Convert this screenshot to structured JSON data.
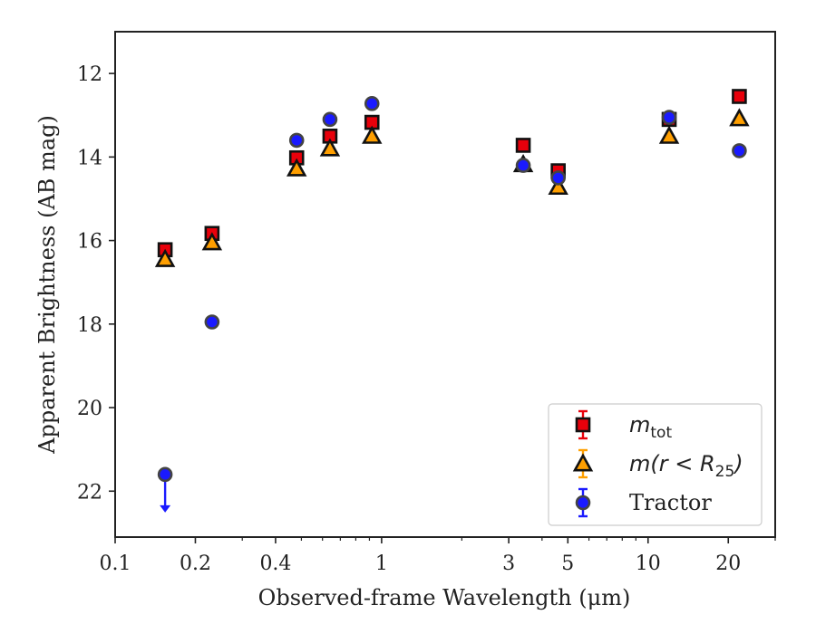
{
  "chart_data": {
    "type": "scatter",
    "xscale": "log",
    "yinverted": true,
    "xlim": [
      0.1,
      30
    ],
    "ylim": [
      11.0,
      23.1
    ],
    "xlabel": "Observed-frame Wavelength (μm)",
    "ylabel": "Apparent Brightness (AB mag)",
    "x_major_ticks": [
      0.1,
      0.2,
      0.4,
      1,
      3,
      5,
      10,
      20
    ],
    "x_tick_labels": [
      "0.1",
      "0.2",
      "0.4",
      "1",
      "3",
      "5",
      "10",
      "20"
    ],
    "y_ticks": [
      12,
      14,
      16,
      18,
      20,
      22
    ],
    "y_tick_labels": [
      "12",
      "14",
      "16",
      "18",
      "20",
      "22"
    ],
    "legend_position": "lower right",
    "grid": false,
    "series": [
      {
        "legend_main": "m",
        "legend_sub": "tot",
        "marker": "square",
        "color": "#e8000b",
        "edge_color": "#111111",
        "points": [
          {
            "x": 0.154,
            "y": 16.22
          },
          {
            "x": 0.231,
            "y": 15.83
          },
          {
            "x": 0.48,
            "y": 14.02
          },
          {
            "x": 0.64,
            "y": 13.5
          },
          {
            "x": 0.92,
            "y": 13.17
          },
          {
            "x": 3.4,
            "y": 13.72
          },
          {
            "x": 4.6,
            "y": 14.33
          },
          {
            "x": 12.0,
            "y": 13.1
          },
          {
            "x": 22.0,
            "y": 12.55
          }
        ]
      },
      {
        "legend_main": "m(r < R",
        "legend_sub": "25",
        "legend_tail": ")",
        "marker": "triangle",
        "color": "#ff9f00",
        "edge_color": "#111111",
        "points": [
          {
            "x": 0.154,
            "y": 16.45
          },
          {
            "x": 0.231,
            "y": 16.05
          },
          {
            "x": 0.48,
            "y": 14.28
          },
          {
            "x": 0.64,
            "y": 13.8
          },
          {
            "x": 0.92,
            "y": 13.5
          },
          {
            "x": 3.4,
            "y": 14.18
          },
          {
            "x": 4.6,
            "y": 14.72
          },
          {
            "x": 12.0,
            "y": 13.5
          },
          {
            "x": 22.0,
            "y": 13.08
          }
        ]
      },
      {
        "legend_main": "Tractor",
        "marker": "circle",
        "color": "#1a1aff",
        "edge_color": "#444444",
        "points": [
          {
            "x": 0.154,
            "y": 21.6,
            "upper_limit": true
          },
          {
            "x": 0.231,
            "y": 17.95
          },
          {
            "x": 0.48,
            "y": 13.6
          },
          {
            "x": 0.64,
            "y": 13.1
          },
          {
            "x": 0.92,
            "y": 12.72
          },
          {
            "x": 3.4,
            "y": 14.2
          },
          {
            "x": 4.6,
            "y": 14.5
          },
          {
            "x": 12.0,
            "y": 13.05
          },
          {
            "x": 22.0,
            "y": 13.85
          }
        ]
      }
    ]
  }
}
